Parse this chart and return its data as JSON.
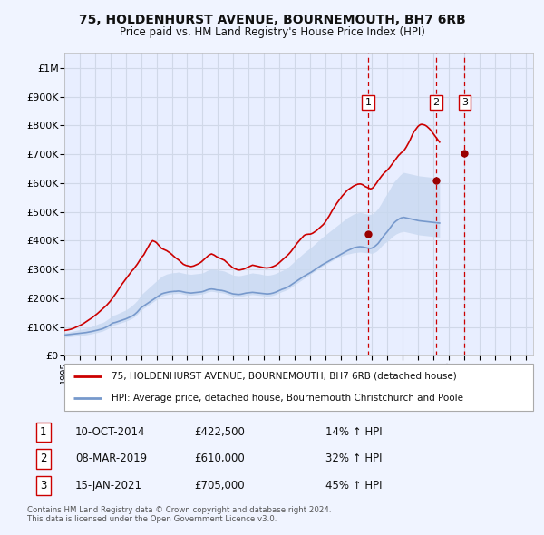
{
  "title": "75, HOLDENHURST AVENUE, BOURNEMOUTH, BH7 6RB",
  "subtitle": "Price paid vs. HM Land Registry's House Price Index (HPI)",
  "ylabel_ticks": [
    "£0",
    "£100K",
    "£200K",
    "£300K",
    "£400K",
    "£500K",
    "£600K",
    "£700K",
    "£800K",
    "£900K",
    "£1M"
  ],
  "ytick_values": [
    0,
    100000,
    200000,
    300000,
    400000,
    500000,
    600000,
    700000,
    800000,
    900000,
    1000000
  ],
  "ylim": [
    0,
    1050000
  ],
  "xlim_start": 1995.0,
  "xlim_end": 2025.5,
  "background_color": "#f0f4ff",
  "plot_bg_color": "#e8eeff",
  "grid_color": "#d0d8e8",
  "red_line_color": "#cc0000",
  "blue_line_color": "#7799cc",
  "blue_fill_color": "#c8d8f0",
  "dashed_line_color": "#cc0000",
  "marker_color_red": "#990000",
  "transactions": [
    {
      "label": "1",
      "date": "10-OCT-2014",
      "price": 422500,
      "pct": "14%",
      "x": 2014.78
    },
    {
      "label": "2",
      "date": "08-MAR-2019",
      "price": 610000,
      "pct": "32%",
      "x": 2019.18
    },
    {
      "label": "3",
      "date": "15-JAN-2021",
      "price": 705000,
      "pct": "45%",
      "x": 2021.04
    }
  ],
  "legend_entries": [
    {
      "label": "75, HOLDENHURST AVENUE, BOURNEMOUTH, BH7 6RB (detached house)",
      "color": "#cc0000"
    },
    {
      "label": "HPI: Average price, detached house, Bournemouth Christchurch and Poole",
      "color": "#7799cc"
    }
  ],
  "table_rows": [
    {
      "num": "1",
      "date": "10-OCT-2014",
      "price": "£422,500",
      "pct": "14% ↑ HPI"
    },
    {
      "num": "2",
      "date": "08-MAR-2019",
      "price": "£610,000",
      "pct": "32% ↑ HPI"
    },
    {
      "num": "3",
      "date": "15-JAN-2021",
      "price": "£705,000",
      "pct": "45% ↑ HPI"
    }
  ],
  "footnote": "Contains HM Land Registry data © Crown copyright and database right 2024.\nThis data is licensed under the Open Government Licence v3.0.",
  "hpi_monthly": {
    "start_year": 1995,
    "start_month": 1,
    "values": [
      72000,
      72500,
      73000,
      73500,
      74000,
      74500,
      75000,
      75500,
      76000,
      76500,
      77000,
      77500,
      78000,
      78500,
      79000,
      79500,
      80000,
      80800,
      81600,
      82400,
      83200,
      84000,
      85000,
      86000,
      87000,
      88000,
      89200,
      90400,
      91600,
      92800,
      94000,
      96000,
      98000,
      100000,
      102500,
      105000,
      108000,
      111000,
      114000,
      115000,
      116000,
      117500,
      119000,
      120500,
      122000,
      123500,
      125000,
      126500,
      128000,
      130000,
      132000,
      134000,
      136000,
      138000,
      141000,
      144000,
      148000,
      152000,
      157000,
      162000,
      167000,
      170000,
      173000,
      176000,
      179000,
      182000,
      185000,
      188000,
      191000,
      194000,
      197000,
      200000,
      203000,
      206000,
      209000,
      212000,
      215000,
      216500,
      218000,
      219000,
      220000,
      221000,
      222000,
      222500,
      223000,
      223500,
      224000,
      224000,
      224500,
      225000,
      224500,
      224000,
      223000,
      222000,
      221000,
      220000,
      219500,
      219000,
      218500,
      218000,
      218500,
      219000,
      219500,
      220000,
      220500,
      221000,
      221500,
      222000,
      223000,
      224500,
      226000,
      228000,
      229500,
      231000,
      231500,
      232000,
      231500,
      231000,
      230000,
      229000,
      228500,
      228000,
      227500,
      227000,
      226000,
      225000,
      223500,
      222000,
      220500,
      219000,
      217500,
      216000,
      215000,
      214500,
      214000,
      213500,
      213000,
      213500,
      214000,
      215000,
      216000,
      217000,
      218000,
      218500,
      219000,
      219500,
      220000,
      220500,
      220000,
      219500,
      219000,
      218500,
      218000,
      217500,
      217000,
      216500,
      216000,
      215500,
      215000,
      215000,
      215500,
      216000,
      217000,
      218000,
      219500,
      221000,
      223000,
      225000,
      227000,
      229000,
      231000,
      232500,
      234000,
      236000,
      238000,
      240000,
      243000,
      246000,
      249000,
      252000,
      255000,
      258000,
      261000,
      264000,
      267000,
      270000,
      273000,
      276000,
      278500,
      281000,
      283500,
      286000,
      288500,
      291000,
      294000,
      297000,
      300000,
      303000,
      306000,
      309000,
      312000,
      315000,
      317500,
      320000,
      322500,
      325000,
      327500,
      330000,
      332500,
      335000,
      337500,
      340000,
      342500,
      345000,
      347500,
      350000,
      352500,
      355000,
      357500,
      360000,
      362500,
      365000,
      367000,
      369000,
      371000,
      373000,
      375000,
      376000,
      377000,
      378000,
      378500,
      379000,
      378500,
      378000,
      377000,
      376000,
      375000,
      374000,
      373500,
      373000,
      374000,
      376000,
      379000,
      382000,
      386000,
      390000,
      396000,
      402000,
      408000,
      414000,
      420000,
      425000,
      430000,
      436000,
      442000,
      448000,
      454000,
      460000,
      464000,
      468000,
      471000,
      474000,
      477000,
      479000,
      480000,
      481000,
      480000,
      479000,
      478000,
      477000,
      476000,
      475000,
      474000,
      473000,
      472000,
      471000,
      470000,
      469000,
      468500,
      468000,
      467500,
      467000,
      466500,
      466000,
      465500,
      465000,
      464500,
      464000,
      463500,
      463000,
      462500,
      462000,
      461500,
      461000
    ],
    "upper_values": [
      80000,
      80500,
      81200,
      82000,
      83000,
      84000,
      85000,
      86000,
      87000,
      88000,
      89000,
      90000,
      91000,
      92000,
      93000,
      94000,
      95000,
      96000,
      97000,
      98000,
      99500,
      101000,
      103000,
      105000,
      106000,
      108000,
      110000,
      112000,
      113000,
      114500,
      116000,
      118000,
      121000,
      124000,
      127000,
      130000,
      133000,
      137000,
      141000,
      142000,
      143000,
      145000,
      147000,
      149000,
      151000,
      153000,
      155000,
      157000,
      159000,
      162000,
      165000,
      168000,
      171000,
      175000,
      179000,
      183000,
      188000,
      192000,
      199000,
      205000,
      211000,
      216000,
      220000,
      224000,
      228000,
      232000,
      236000,
      240000,
      244000,
      248000,
      252000,
      256000,
      260000,
      264000,
      268000,
      272000,
      276000,
      278000,
      280000,
      282000,
      284000,
      285000,
      286000,
      287000,
      288000,
      288500,
      289000,
      289000,
      290000,
      291000,
      290000,
      289000,
      288000,
      287000,
      286000,
      285000,
      284500,
      284000,
      283500,
      283000,
      283500,
      284000,
      284500,
      285000,
      285500,
      286000,
      286500,
      287000,
      288000,
      290000,
      292000,
      295000,
      297000,
      299000,
      300000,
      301000,
      300500,
      300000,
      299000,
      298000,
      297500,
      297000,
      296500,
      296000,
      295000,
      294000,
      292000,
      290000,
      288000,
      286000,
      284000,
      282000,
      280000,
      279500,
      279000,
      278500,
      278000,
      278500,
      279000,
      280000,
      281000,
      282000,
      283000,
      284000,
      285000,
      286000,
      287000,
      288000,
      287000,
      286500,
      286000,
      285500,
      285000,
      284000,
      283000,
      282000,
      281000,
      280500,
      280000,
      280000,
      280500,
      281000,
      282000,
      283000,
      284500,
      286000,
      288000,
      290000,
      292000,
      294000,
      296000,
      298000,
      300000,
      303000,
      306000,
      309000,
      313000,
      317000,
      321000,
      325000,
      329000,
      333000,
      337000,
      341000,
      345000,
      349000,
      353000,
      357000,
      360500,
      364000,
      367500,
      371000,
      374500,
      378000,
      382000,
      386000,
      390000,
      394000,
      398000,
      402000,
      406000,
      410000,
      413500,
      417000,
      420500,
      424000,
      427500,
      431000,
      434500,
      438000,
      441500,
      445000,
      448500,
      452000,
      455500,
      459000,
      462500,
      466000,
      469500,
      473000,
      476500,
      480000,
      482500,
      485000,
      487500,
      490000,
      492500,
      494000,
      495000,
      496000,
      497000,
      498000,
      497000,
      496000,
      495000,
      494000,
      493000,
      492000,
      491500,
      491000,
      492000,
      494000,
      498000,
      502000,
      507000,
      512000,
      519000,
      526000,
      534000,
      542000,
      549000,
      556000,
      563000,
      570000,
      578000,
      586000,
      594000,
      602000,
      607000,
      612000,
      617000,
      622000,
      627000,
      631000,
      635000,
      637000,
      636000,
      635000,
      634000,
      633000,
      632000,
      631000,
      630000,
      629000,
      628000,
      627000,
      626000,
      625000,
      624500,
      624000,
      623500,
      623000,
      622500,
      622000,
      621500,
      621000,
      620500,
      620000,
      619500,
      619000,
      618500,
      618000,
      617500,
      617000
    ],
    "lower_values": [
      64000,
      64500,
      65000,
      65500,
      66000,
      66500,
      67000,
      67500,
      68000,
      68500,
      69000,
      69500,
      70000,
      70500,
      71000,
      71500,
      72000,
      72800,
      73600,
      74400,
      75200,
      76000,
      77000,
      78000,
      79000,
      80000,
      81200,
      82400,
      83600,
      84800,
      86000,
      88000,
      90000,
      92000,
      94500,
      97000,
      100000,
      103000,
      106000,
      107000,
      108000,
      109500,
      111000,
      112500,
      114000,
      115500,
      117000,
      118500,
      120000,
      122000,
      124000,
      126000,
      128000,
      130000,
      133000,
      136000,
      140000,
      144000,
      149000,
      154000,
      159000,
      162000,
      165000,
      168000,
      171000,
      174000,
      177000,
      180000,
      183000,
      186000,
      189000,
      192000,
      195000,
      198000,
      201000,
      204000,
      207000,
      208500,
      210000,
      211000,
      212000,
      213000,
      214000,
      214500,
      215000,
      215500,
      216000,
      216000,
      216500,
      217000,
      216500,
      216000,
      215000,
      214000,
      213000,
      212000,
      211500,
      211000,
      210500,
      210000,
      210500,
      211000,
      211500,
      212000,
      212500,
      213000,
      213500,
      214000,
      215000,
      216500,
      218000,
      220000,
      221500,
      223000,
      223500,
      224000,
      223500,
      223000,
      222000,
      221000,
      220500,
      220000,
      219500,
      219000,
      218000,
      217000,
      215500,
      214000,
      212500,
      211000,
      209500,
      208000,
      207000,
      206500,
      206000,
      205500,
      205000,
      205500,
      206000,
      207000,
      208000,
      209000,
      210000,
      210500,
      211000,
      211500,
      212000,
      212500,
      212000,
      211500,
      211000,
      210500,
      210000,
      209500,
      209000,
      208500,
      208000,
      207500,
      207000,
      207000,
      207500,
      208000,
      209000,
      210000,
      211500,
      213000,
      215000,
      217000,
      219000,
      221000,
      223000,
      224500,
      226000,
      228000,
      230000,
      232000,
      235000,
      238000,
      241000,
      244000,
      247000,
      250000,
      253000,
      256000,
      259000,
      262000,
      265000,
      268000,
      271000,
      274000,
      277000,
      280000,
      283000,
      286000,
      289000,
      292000,
      295000,
      298000,
      301000,
      304000,
      307000,
      310000,
      312500,
      315000,
      317500,
      320000,
      322500,
      325000,
      327500,
      330000,
      332500,
      335000,
      337500,
      340000,
      342500,
      344000,
      345500,
      347000,
      348500,
      350000,
      351500,
      353000,
      354000,
      355000,
      356000,
      357000,
      358000,
      358500,
      359000,
      359500,
      360000,
      360500,
      360000,
      359500,
      359000,
      358500,
      358000,
      357500,
      357000,
      356500,
      356000,
      357000,
      359000,
      361000,
      364000,
      368000,
      373000,
      378000,
      383000,
      387000,
      391000,
      394000,
      397000,
      401000,
      405000,
      409000,
      413000,
      417000,
      420000,
      423000,
      425000,
      427000,
      429000,
      430000,
      431000,
      432000,
      431000,
      430000,
      429000,
      428000,
      427000,
      426000,
      425000,
      424000,
      423000,
      422000,
      421000,
      420000,
      419500,
      419000,
      418500,
      418000,
      417500,
      417000,
      416500,
      416000,
      415500,
      415000,
      414500,
      414000,
      413500,
      413000,
      412500,
      412000
    ]
  },
  "red_monthly": {
    "start_year": 1995,
    "start_month": 1,
    "values": [
      88000,
      88500,
      89200,
      90000,
      91000,
      92000,
      93500,
      95000,
      97000,
      99000,
      101000,
      103000,
      105000,
      107000,
      109500,
      112000,
      115000,
      118000,
      121000,
      124000,
      127000,
      130000,
      133000,
      136500,
      140000,
      143500,
      147000,
      151000,
      155000,
      159000,
      163000,
      167000,
      171000,
      175000,
      180000,
      185000,
      190000,
      196000,
      202000,
      208000,
      214500,
      221000,
      227500,
      234000,
      241000,
      248000,
      254000,
      260000,
      266000,
      272000,
      278000,
      284000,
      290000,
      296000,
      300000,
      306000,
      312000,
      318000,
      325000,
      332000,
      340000,
      345000,
      350000,
      358000,
      366000,
      374000,
      382000,
      390000,
      395000,
      400000,
      398000,
      396000,
      393000,
      388000,
      383000,
      378000,
      373000,
      371000,
      369000,
      367000,
      365000,
      362000,
      359000,
      356000,
      352000,
      348000,
      344000,
      340000,
      337000,
      334000,
      330000,
      326000,
      322000,
      318000,
      316000,
      314000,
      313000,
      312000,
      311000,
      310000,
      311000,
      312000,
      314000,
      316000,
      318000,
      320000,
      323000,
      326000,
      330000,
      334000,
      338000,
      342000,
      346000,
      350000,
      352000,
      354000,
      352000,
      350000,
      347000,
      344000,
      342000,
      340000,
      338000,
      336000,
      334000,
      332000,
      328000,
      324000,
      320000,
      316000,
      312000,
      308000,
      305000,
      303000,
      301000,
      299000,
      298000,
      298000,
      299000,
      300000,
      301000,
      303000,
      305000,
      307000,
      309000,
      311000,
      313000,
      315000,
      314000,
      313000,
      312000,
      311000,
      310000,
      309000,
      308000,
      307000,
      306000,
      305500,
      305000,
      305500,
      306000,
      307000,
      308500,
      310000,
      312000,
      314000,
      317000,
      320000,
      324000,
      328000,
      332000,
      336000,
      340000,
      344000,
      348000,
      352000,
      357000,
      362000,
      368000,
      374000,
      380000,
      386000,
      392000,
      397000,
      402000,
      407000,
      412000,
      417000,
      420000,
      421500,
      422000,
      422500,
      422500,
      424000,
      426000,
      429000,
      432000,
      435000,
      439000,
      443000,
      447000,
      451000,
      455000,
      460000,
      466000,
      473000,
      480000,
      487000,
      495000,
      503000,
      510000,
      517000,
      524000,
      531000,
      537000,
      543000,
      549000,
      555000,
      560000,
      565000,
      570000,
      575000,
      578000,
      581000,
      584000,
      587000,
      590000,
      592000,
      594000,
      596000,
      596500,
      597000,
      596000,
      594000,
      591000,
      588000,
      586000,
      584000,
      582000,
      580000,
      581000,
      584000,
      589000,
      595000,
      601000,
      608000,
      614000,
      620000,
      626000,
      631000,
      636000,
      640000,
      644000,
      649000,
      654000,
      660000,
      666000,
      672000,
      678000,
      684000,
      690000,
      696000,
      700000,
      705000,
      708000,
      712000,
      718000,
      725000,
      733000,
      741000,
      750000,
      760000,
      770000,
      778000,
      784000,
      790000,
      796000,
      800000,
      803000,
      804000,
      803000,
      802000,
      800000,
      797000,
      793000,
      789000,
      784000,
      778000,
      772000,
      766000,
      760000,
      754000,
      748000,
      742000
    ]
  }
}
